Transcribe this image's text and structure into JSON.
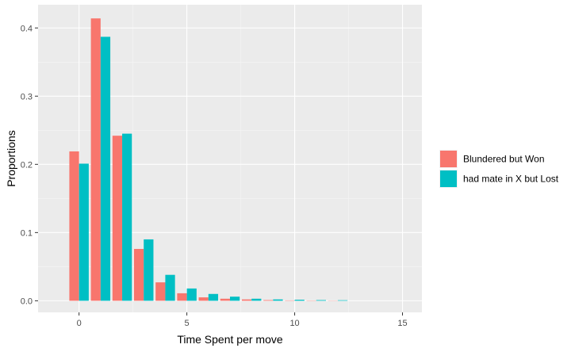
{
  "chart_data": {
    "type": "bar",
    "xlabel": "Time Spent per move",
    "ylabel": "Proportions",
    "xlim": [
      -1.9,
      15.9
    ],
    "ylim": [
      -0.017,
      0.434
    ],
    "x_ticks": [
      0,
      5,
      10,
      15
    ],
    "x_tick_labels": [
      "0",
      "5",
      "10",
      "15"
    ],
    "y_ticks": [
      0.0,
      0.1,
      0.2,
      0.3,
      0.4
    ],
    "y_tick_labels": [
      "0.0",
      "0.1",
      "0.2",
      "0.3",
      "0.4"
    ],
    "grid": true,
    "legend_position": "right",
    "x": [
      0,
      1,
      2,
      3,
      4,
      5,
      6,
      7,
      8,
      9,
      10,
      11,
      12
    ],
    "series": [
      {
        "name": "Blundered but Won",
        "color": "#F8766D",
        "values": [
          0.219,
          0.414,
          0.242,
          0.076,
          0.027,
          0.011,
          0.005,
          0.003,
          0.002,
          0.001,
          0.0005,
          0.0004,
          0.0003
        ]
      },
      {
        "name": "had mate in X but Lost",
        "color": "#00BFC4",
        "values": [
          0.201,
          0.387,
          0.245,
          0.09,
          0.038,
          0.018,
          0.01,
          0.006,
          0.003,
          0.002,
          0.0015,
          0.001,
          0.0008
        ]
      }
    ]
  },
  "colors": {
    "panel_background": "#EBEBEB",
    "grid_major": "#FFFFFF",
    "grid_minor": "#F5F5F5"
  }
}
